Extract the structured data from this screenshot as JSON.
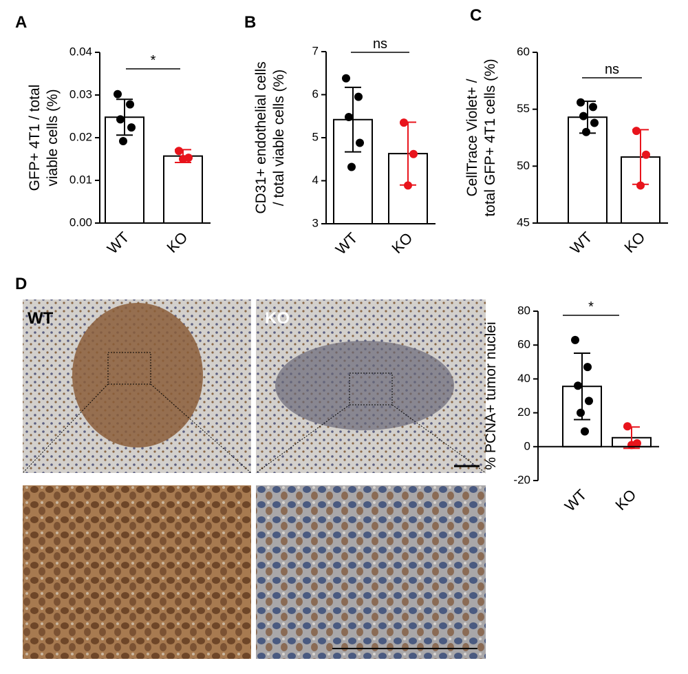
{
  "chart_data": [
    {
      "type": "bar",
      "panel": "A",
      "ylabel": [
        "GFP+ 4T1 / total",
        "viable cells (%)"
      ],
      "categories": [
        "WT",
        "KO"
      ],
      "values": [
        0.0248,
        0.0157
      ],
      "errors": [
        0.0042,
        0.0015
      ],
      "points": [
        [
          0.0302,
          0.0278,
          0.0243,
          0.0224,
          0.0192
        ],
        [
          0.0169,
          0.0153,
          0.015
        ]
      ],
      "colors": [
        "#000000",
        "#e8141c"
      ],
      "significance": "*",
      "ylim": [
        0,
        0.04
      ],
      "yticks": [
        {
          "value": 0,
          "label": "0.00"
        },
        0.01,
        0.02,
        0.03,
        0.04
      ]
    },
    {
      "type": "bar",
      "panel": "B",
      "ylabel": [
        "CD31+ endothelial cells",
        "/ total viable cells (%)"
      ],
      "categories": [
        "WT",
        "KO"
      ],
      "values": [
        5.42,
        4.63
      ],
      "errors": [
        0.75,
        0.73
      ],
      "points": [
        [
          6.38,
          5.95,
          5.48,
          4.88,
          4.32
        ],
        [
          5.35,
          4.62,
          3.89
        ]
      ],
      "colors": [
        "#000000",
        "#e8141c"
      ],
      "significance": "ns",
      "ylim": [
        3,
        7
      ],
      "yticks": [
        3,
        4,
        5,
        6,
        7
      ]
    },
    {
      "type": "bar",
      "panel": "C",
      "ylabel": [
        "CellTrace Violet+ /",
        "total GFP+ 4T1 cells (%)"
      ],
      "categories": [
        "WT",
        "KO"
      ],
      "values": [
        54.3,
        50.8
      ],
      "errors": [
        1.4,
        2.4
      ],
      "points": [
        [
          55.6,
          55.2,
          54.4,
          53.8,
          53.0
        ],
        [
          53.1,
          51.0,
          48.3
        ]
      ],
      "colors": [
        "#000000",
        "#e8141c"
      ],
      "significance": "ns",
      "ylim": [
        45,
        60
      ],
      "yticks": [
        45,
        50,
        55,
        60
      ]
    },
    {
      "type": "bar",
      "ylabel": [
        "% PCNA+ tumor nuclei"
      ],
      "categories": [
        "WT",
        "KO"
      ],
      "values": [
        35.6,
        5.3
      ],
      "errors": [
        19.6,
        6.3
      ],
      "points": [
        [
          63,
          47,
          36,
          27,
          20,
          9
        ],
        [
          12,
          2,
          1
        ]
      ],
      "colors": [
        "#000000",
        "#e8141c"
      ],
      "significance": "*",
      "ylim": [
        -20,
        80
      ],
      "yticks": [
        -20,
        0,
        20,
        40,
        60,
        80
      ]
    }
  ],
  "images": {
    "panel": "D",
    "labels": [
      "WT",
      "KO"
    ]
  }
}
